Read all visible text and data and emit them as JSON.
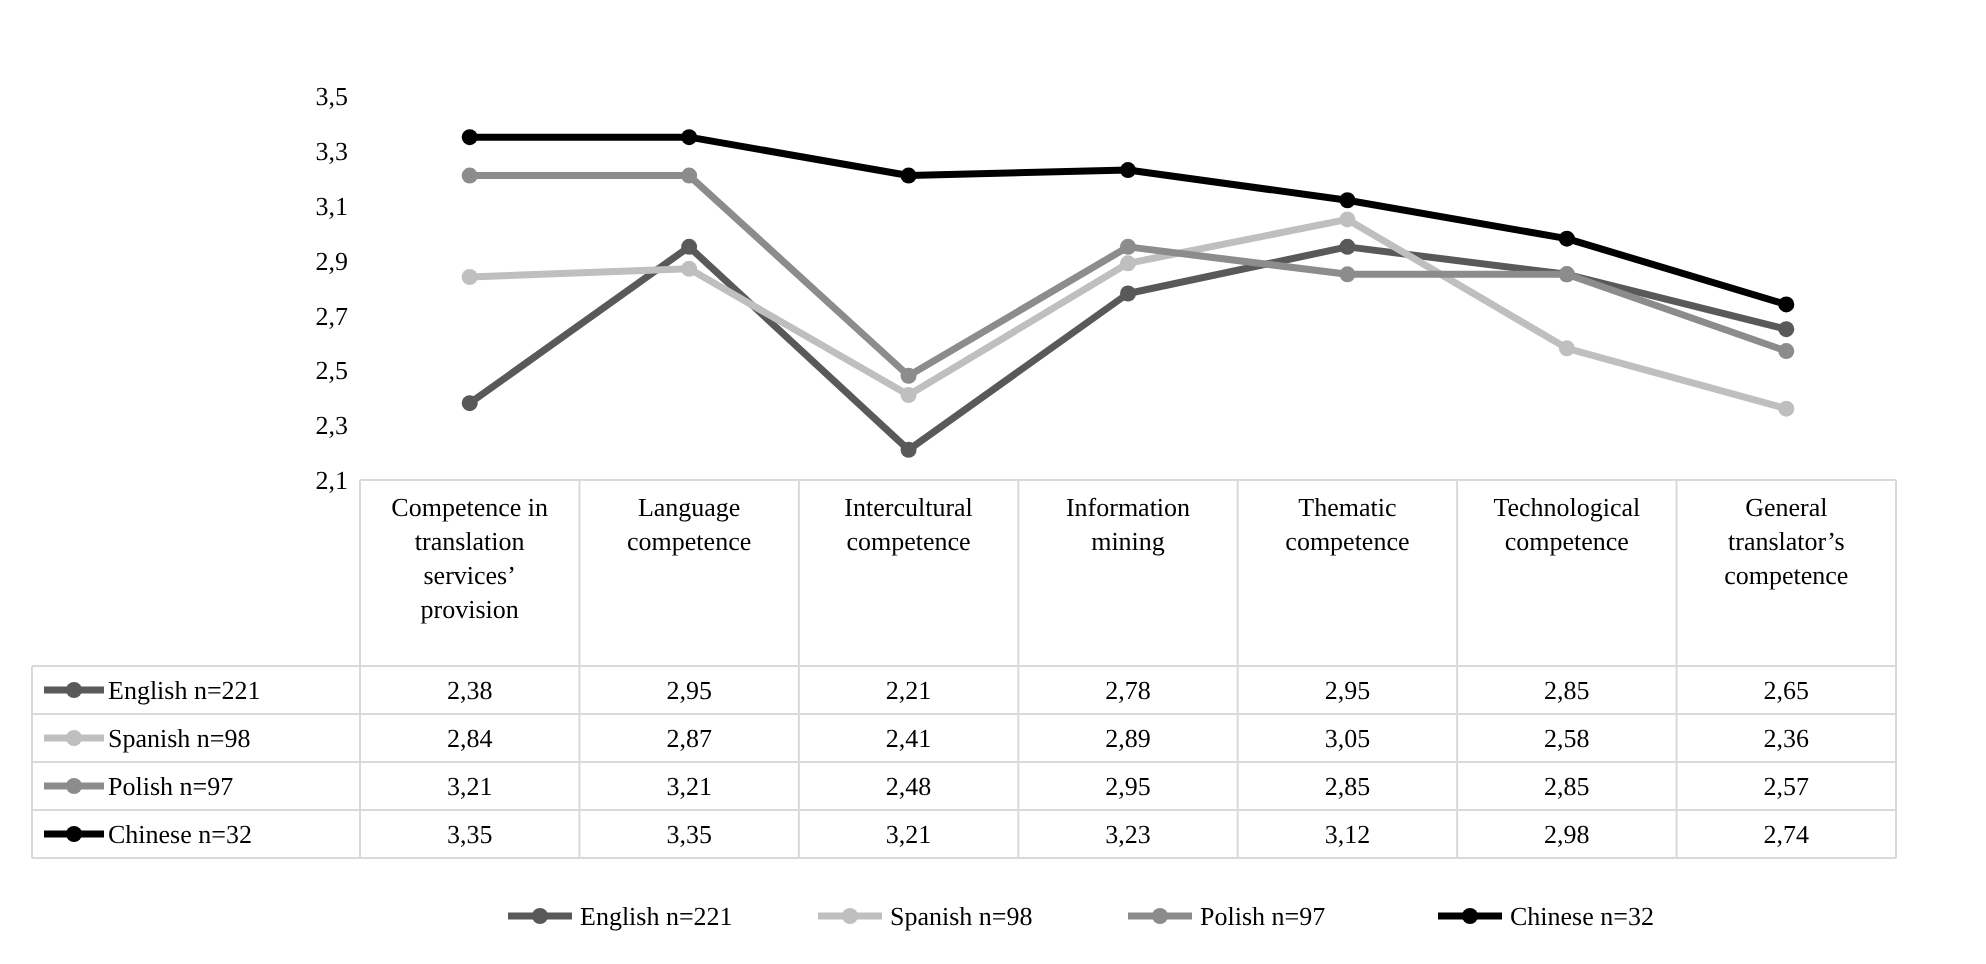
{
  "chart_data": {
    "type": "line",
    "categories": [
      "Competence in translation services’ provision",
      "Language competence",
      "Intercultural competence",
      "Information mining",
      "Thematic competence",
      "Technological competence",
      "General translator’s competence"
    ],
    "ylim": [
      2.1,
      3.5
    ],
    "yticks": [
      {
        "value": 2.1,
        "label": "2,1"
      },
      {
        "value": 2.3,
        "label": "2,3"
      },
      {
        "value": 2.5,
        "label": "2,5"
      },
      {
        "value": 2.7,
        "label": "2,7"
      },
      {
        "value": 2.9,
        "label": "2,9"
      },
      {
        "value": 3.1,
        "label": "3,1"
      },
      {
        "value": 3.3,
        "label": "3,3"
      },
      {
        "value": 3.5,
        "label": "3,5"
      }
    ],
    "marker": "circle",
    "line_style": "solid",
    "legend": "bottom",
    "data_labels": true,
    "series": [
      {
        "name": "English n=221",
        "color": "#595959",
        "values": [
          2.38,
          2.95,
          2.21,
          2.78,
          2.95,
          2.85,
          2.65
        ],
        "value_labels": [
          "2,38",
          "2,95",
          "2,21",
          "2,78",
          "2,95",
          "2,85",
          "2,65"
        ]
      },
      {
        "name": "Spanish n=98",
        "color": "#bfbfbf",
        "values": [
          2.84,
          2.87,
          2.41,
          2.89,
          3.05,
          2.58,
          2.36
        ],
        "value_labels": [
          "2,84",
          "2,87",
          "2,41",
          "2,89",
          "3,05",
          "2,58",
          "2,36"
        ]
      },
      {
        "name": "Polish n=97",
        "color": "#8c8c8c",
        "values": [
          3.21,
          3.21,
          2.48,
          2.95,
          2.85,
          2.85,
          2.57
        ],
        "value_labels": [
          "3,21",
          "3,21",
          "2,48",
          "2,95",
          "2,85",
          "2,85",
          "2,57"
        ]
      },
      {
        "name": "Chinese n=32",
        "color": "#000000",
        "values": [
          3.35,
          3.35,
          3.21,
          3.23,
          3.12,
          2.98,
          2.74
        ],
        "value_labels": [
          "3,35",
          "3,35",
          "3,21",
          "3,23",
          "3,12",
          "2,98",
          "2,74"
        ]
      }
    ]
  }
}
